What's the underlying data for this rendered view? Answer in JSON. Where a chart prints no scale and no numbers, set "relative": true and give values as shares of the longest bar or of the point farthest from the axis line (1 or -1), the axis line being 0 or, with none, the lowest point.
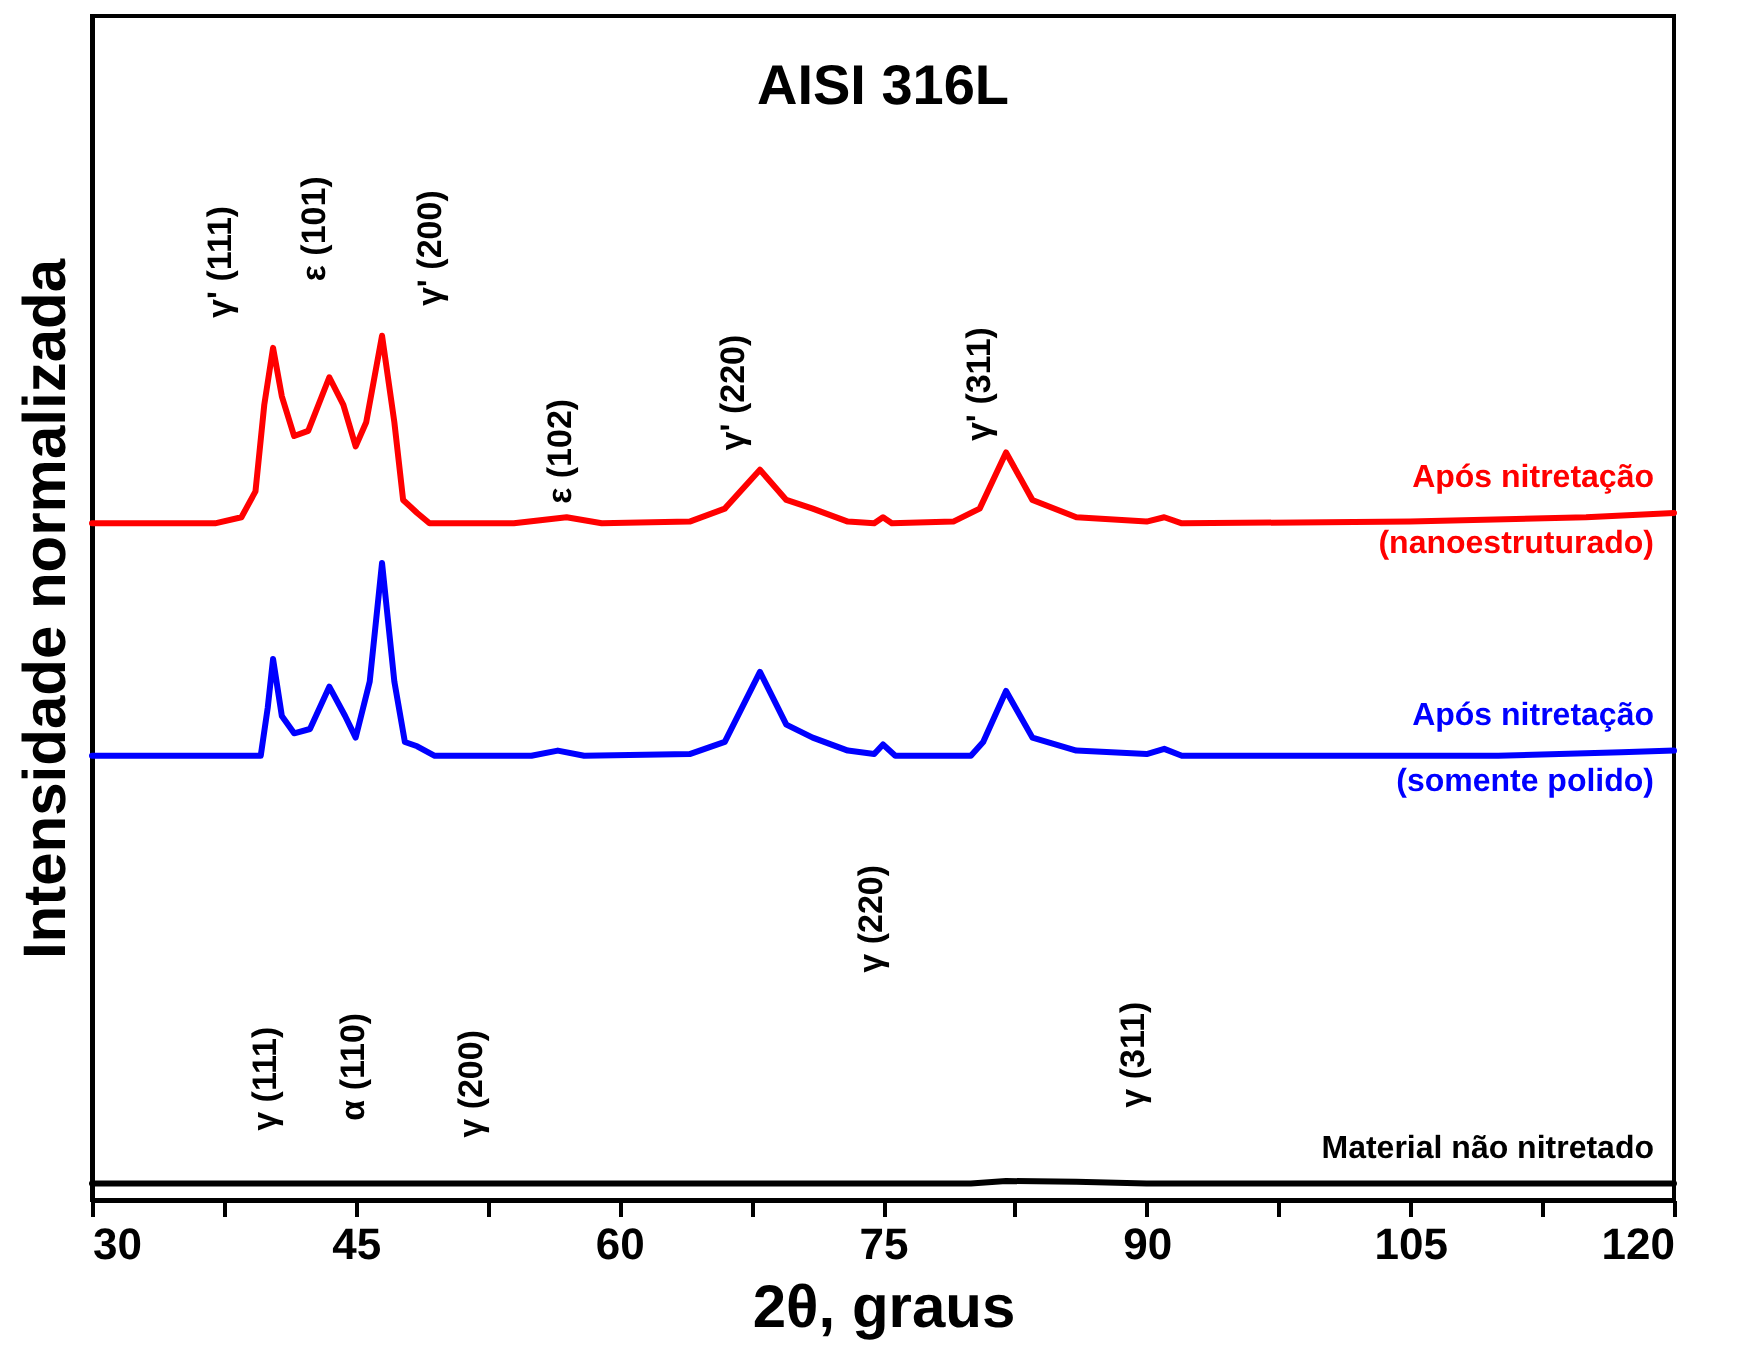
{
  "chart_data": {
    "type": "line",
    "title": "AISI 316L",
    "xlabel": "2θ, graus",
    "ylabel": "Intensidade normalizada",
    "relative": true,
    "legend": false,
    "grid": false,
    "marker": "none",
    "line_style": "solid",
    "xlim": [
      30,
      120
    ],
    "xticks": [
      30,
      {
        "value": 37.5,
        "label": null
      },
      45,
      {
        "value": 52.5,
        "label": null
      },
      60,
      {
        "value": 67.5,
        "label": null
      },
      75,
      {
        "value": 82.5,
        "label": null
      },
      90,
      {
        "value": 97.5,
        "label": null
      },
      105,
      {
        "value": 112.5,
        "label": null
      },
      120
    ],
    "series": [
      {
        "name": "Após nitretação\n(nanoestruturado)",
        "color": "#ff0000",
        "x": [
          30,
          37,
          38.5,
          39.3,
          39.8,
          40.3,
          40.8,
          41.5,
          42.3,
          43.5,
          44.3,
          45,
          45.6,
          46.5,
          47.2,
          47.7,
          48.5,
          49.2,
          54,
          57,
          59,
          64,
          66,
          68,
          69.5,
          71,
          73,
          74.5,
          75,
          75.5,
          79,
          80.5,
          82,
          83.5,
          86,
          90,
          91,
          92,
          105,
          115,
          120
        ],
        "values": [
          0.783,
          0.783,
          0.79,
          0.82,
          0.92,
          0.986,
          0.93,
          0.884,
          0.89,
          0.952,
          0.92,
          0.872,
          0.9,
          1.0,
          0.9,
          0.81,
          0.795,
          0.783,
          0.783,
          0.79,
          0.783,
          0.785,
          0.8,
          0.845,
          0.81,
          0.8,
          0.785,
          0.783,
          0.79,
          0.783,
          0.785,
          0.8,
          0.865,
          0.81,
          0.79,
          0.785,
          0.79,
          0.783,
          0.785,
          0.79,
          0.795
        ]
      },
      {
        "name": "Após nitretação\n(somente polido)",
        "color": "#0000ff",
        "x": [
          30,
          39.6,
          40,
          40.3,
          40.8,
          41.5,
          42.4,
          43.5,
          44.4,
          45,
          45.8,
          46.5,
          47.2,
          47.8,
          48.5,
          49.5,
          55,
          56.5,
          58,
          64,
          66,
          68,
          69.5,
          71,
          73,
          74.5,
          75,
          75.7,
          80,
          80.7,
          82,
          83.5,
          86,
          90,
          91,
          92,
          110,
          117,
          120
        ],
        "values": [
          0.514,
          0.514,
          0.57,
          0.626,
          0.56,
          0.54,
          0.545,
          0.594,
          0.56,
          0.535,
          0.6,
          0.737,
          0.6,
          0.53,
          0.525,
          0.514,
          0.514,
          0.52,
          0.514,
          0.516,
          0.53,
          0.611,
          0.55,
          0.535,
          0.52,
          0.516,
          0.527,
          0.514,
          0.514,
          0.53,
          0.589,
          0.535,
          0.52,
          0.516,
          0.522,
          0.514,
          0.514,
          0.518,
          0.52
        ]
      },
      {
        "name": "Material não nitretado",
        "color": "#000000",
        "x": [
          30,
          80,
          82,
          86,
          90,
          120
        ],
        "values": [
          0.019,
          0.019,
          0.022,
          0.021,
          0.019,
          0.019
        ]
      }
    ],
    "annotations": [
      "γ' (111)",
      "ε (101)",
      "γ' (200)",
      "ε (102)",
      "γ' (220)",
      "γ' (311)",
      "γ (111)",
      "α (110)",
      "γ (200)",
      "γ (220)",
      "γ (311)"
    ]
  }
}
